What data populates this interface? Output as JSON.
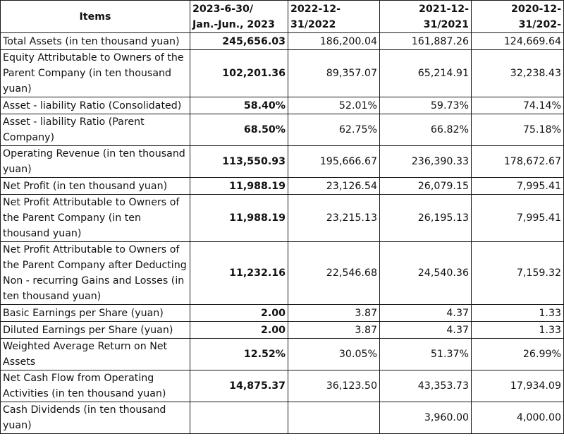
{
  "header": {
    "items": "Items",
    "col1": [
      "2023-6-30/",
      "Jan.-Jun., 2023"
    ],
    "col2": [
      "2022-12-",
      "31/2022"
    ],
    "col3": [
      "2021-12-",
      "31/2021"
    ],
    "col4": [
      "2020-12-",
      "31/202-"
    ]
  },
  "rows": [
    {
      "item": "Total Assets (in ten thousand yuan)",
      "v1": "245,656.03",
      "v2": "186,200.04",
      "v3": "161,887.26",
      "v4": "124,669.64"
    },
    {
      "item": "Equity Attributable to Owners of the Parent Company (in ten thousand yuan)",
      "v1": "102,201.36",
      "v2": "89,357.07",
      "v3": "65,214.91",
      "v4": "32,238.43"
    },
    {
      "item": "Asset - liability Ratio (Consolidated)",
      "v1": "58.40%",
      "v2": "52.01%",
      "v3": "59.73%",
      "v4": "74.14%"
    },
    {
      "item": "Asset - liability Ratio (Parent Company)",
      "v1": "68.50%",
      "v2": "62.75%",
      "v3": "66.82%",
      "v4": "75.18%"
    },
    {
      "item": "Operating Revenue (in ten thousand yuan)",
      "v1": "113,550.93",
      "v2": "195,666.67",
      "v3": "236,390.33",
      "v4": "178,672.67"
    },
    {
      "item": "Net Profit (in ten thousand yuan)",
      "v1": "11,988.19",
      "v2": "23,126.54",
      "v3": "26,079.15",
      "v4": "7,995.41"
    },
    {
      "item": "Net Profit Attributable to Owners of the Parent Company (in ten thousand yuan)",
      "v1": "11,988.19",
      "v2": "23,215.13",
      "v3": "26,195.13",
      "v4": "7,995.41"
    },
    {
      "item": "Net Profit Attributable to Owners of the Parent Company after Deducting Non - recurring Gains and Losses (in ten thousand yuan)",
      "v1": "11,232.16",
      "v2": "22,546.68",
      "v3": "24,540.36",
      "v4": "7,159.32"
    },
    {
      "item": "Basic Earnings per Share (yuan)",
      "v1": "2.00",
      "v2": "3.87",
      "v3": "4.37",
      "v4": "1.33"
    },
    {
      "item": "Diluted Earnings per Share (yuan)",
      "v1": "2.00",
      "v2": "3.87",
      "v3": "4.37",
      "v4": "1.33"
    },
    {
      "item": "Weighted Average Return on Net Assets",
      "v1": "12.52%",
      "v2": "30.05%",
      "v3": "51.37%",
      "v4": "26.99%"
    },
    {
      "item": "Net Cash Flow from Operating Activities (in ten thousand yuan)",
      "v1": "14,875.37",
      "v2": "36,123.50",
      "v3": "43,353.73",
      "v4": "17,934.09"
    },
    {
      "item": "Cash Dividends (in ten thousand yuan)",
      "v1": "",
      "v2": "",
      "v3": "3,960.00",
      "v4": "4,000.00"
    }
  ]
}
